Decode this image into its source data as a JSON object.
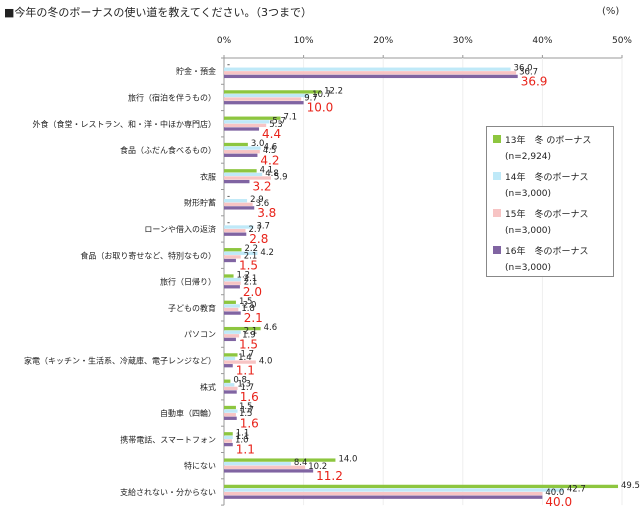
{
  "title": "■今年の冬のボーナスの使い道を教えてください。（3つまで）",
  "unit": "(%)",
  "chart_data": {
    "type": "bar",
    "orientation": "horizontal",
    "xlim": [
      0,
      50
    ],
    "xticks": [
      "0%",
      "10%",
      "20%",
      "30%",
      "40%",
      "50%"
    ],
    "categories": [
      "貯金・預金",
      "旅行（宿泊を伴うもの）",
      "外食（食堂・レストラン、和・洋・中ほか専門店）",
      "食品（ふだん食べるもの）",
      "衣服",
      "財形貯蓄",
      "ローンや借入の返済",
      "食品（お取り寄せなど、特別なもの）",
      "旅行（日帰り）",
      "子どもの教育",
      "パソコン",
      "家電（キッチン・生活系、冷蔵庫、電子レンジなど）",
      "株式",
      "自動車（四輪）",
      "携帯電話、スマートフォン",
      "特にない",
      "支給されない・分からない"
    ],
    "series": [
      {
        "name": "13年　冬 のボーナス",
        "n": "(n=2,924)",
        "color": "#8dc63f",
        "values": [
          null,
          12.2,
          7.1,
          3.0,
          4.1,
          null,
          null,
          2.2,
          1.2,
          1.5,
          4.6,
          1.7,
          0.8,
          1.5,
          1.1,
          14.0,
          49.5
        ]
      },
      {
        "name": "14年　冬のボーナス",
        "n": "(n=3,000)",
        "color": "#bfe9f8",
        "values": [
          36.0,
          10.7,
          5.7,
          4.6,
          4.8,
          2.9,
          3.7,
          4.2,
          2.1,
          2.0,
          2.1,
          1.4,
          1.3,
          1.7,
          1.1,
          8.4,
          42.7
        ]
      },
      {
        "name": "15年　冬のボーナス",
        "n": "(n=3,000)",
        "color": "#f7c4c4",
        "values": [
          36.7,
          9.7,
          5.3,
          4.5,
          5.9,
          3.6,
          2.7,
          2.1,
          2.1,
          1.8,
          1.9,
          4.0,
          1.7,
          1.5,
          1.0,
          10.2,
          40.0
        ]
      },
      {
        "name": "16年　冬のボーナス",
        "n": "(n=3,000)",
        "color": "#8064a2",
        "values": [
          36.9,
          10.0,
          4.4,
          4.2,
          3.2,
          3.8,
          2.8,
          1.5,
          2.0,
          2.1,
          1.5,
          1.1,
          1.6,
          1.6,
          1.1,
          11.2,
          40.0
        ]
      }
    ],
    "legend_position": "right",
    "highlight_color": "#e8231a"
  }
}
